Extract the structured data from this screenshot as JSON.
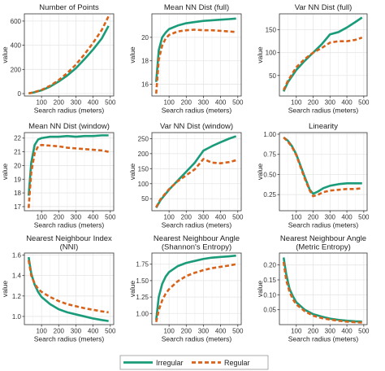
{
  "colors": {
    "irregular": "#1a9c7a",
    "regular": "#d9621a",
    "panel_bg": "#ffffff",
    "grid": "#e6e6e6",
    "frame": "#333333"
  },
  "legend": {
    "items": [
      {
        "label": "Irregular",
        "key": "irregular",
        "dash": false
      },
      {
        "label": "Regular",
        "key": "regular",
        "dash": true
      }
    ]
  },
  "chart_data": [
    {
      "type": "line",
      "title": [
        "Number of Points"
      ],
      "xlabel": "Search radius (meters)",
      "ylabel": "value",
      "xlim": [
        0,
        520
      ],
      "ylim": [
        -20,
        660
      ],
      "xticks": [
        100,
        200,
        300,
        400,
        500
      ],
      "yticks": [
        0,
        200,
        400,
        600
      ],
      "grid": true,
      "x": [
        25,
        50,
        100,
        150,
        200,
        250,
        300,
        350,
        400,
        450,
        490
      ],
      "series": [
        {
          "name": "Irregular",
          "values": [
            2,
            8,
            27,
            58,
            100,
            150,
            210,
            285,
            365,
            455,
            560
          ]
        },
        {
          "name": "Regular",
          "values": [
            2,
            9,
            30,
            65,
            112,
            170,
            240,
            325,
            420,
            525,
            640
          ]
        }
      ]
    },
    {
      "type": "line",
      "title": [
        "Mean NN Dist (full)"
      ],
      "xlabel": "Search radius (meters)",
      "ylabel": "value",
      "xlim": [
        0,
        520
      ],
      "ylim": [
        15,
        22
      ],
      "xticks": [
        100,
        200,
        300,
        400,
        500
      ],
      "yticks": [
        16,
        18,
        20
      ],
      "grid": true,
      "x": [
        25,
        40,
        60,
        80,
        100,
        150,
        200,
        250,
        300,
        350,
        400,
        450,
        490
      ],
      "series": [
        {
          "name": "Irregular",
          "values": [
            16.2,
            18.9,
            20.0,
            20.4,
            20.7,
            21.0,
            21.2,
            21.3,
            21.4,
            21.45,
            21.5,
            21.55,
            21.6
          ]
        },
        {
          "name": "Regular",
          "values": [
            15.2,
            18.1,
            19.3,
            19.9,
            20.2,
            20.5,
            20.6,
            20.65,
            20.6,
            20.6,
            20.55,
            20.5,
            20.45
          ]
        }
      ]
    },
    {
      "type": "line",
      "title": [
        "Var NN Dist (full)"
      ],
      "xlabel": "Search radius (meters)",
      "ylabel": "value",
      "xlim": [
        0,
        520
      ],
      "ylim": [
        5,
        185
      ],
      "xticks": [
        100,
        200,
        300,
        400,
        500
      ],
      "yticks": [
        50,
        100,
        150
      ],
      "grid": true,
      "x": [
        25,
        50,
        100,
        150,
        200,
        250,
        300,
        350,
        400,
        450,
        490
      ],
      "series": [
        {
          "name": "Irregular",
          "values": [
            15,
            35,
            62,
            82,
            100,
            118,
            140,
            145,
            155,
            167,
            177
          ]
        },
        {
          "name": "Regular",
          "values": [
            18,
            38,
            68,
            86,
            100,
            110,
            122,
            125,
            125,
            128,
            133
          ]
        }
      ]
    },
    {
      "type": "line",
      "title": [
        "Mean NN Dist (window)"
      ],
      "xlabel": "Search radius (meters)",
      "ylabel": "value",
      "xlim": [
        0,
        520
      ],
      "ylim": [
        16.7,
        22.4
      ],
      "xticks": [
        100,
        200,
        300,
        400,
        500
      ],
      "yticks": [
        17,
        18,
        19,
        20,
        21,
        22
      ],
      "grid": true,
      "x": [
        25,
        40,
        60,
        80,
        100,
        150,
        200,
        250,
        300,
        350,
        400,
        450,
        490
      ],
      "series": [
        {
          "name": "Irregular",
          "values": [
            17.8,
            20.2,
            21.5,
            21.9,
            22.0,
            22.1,
            22.1,
            22.15,
            22.1,
            22.15,
            22.15,
            22.2,
            22.2
          ]
        },
        {
          "name": "Regular",
          "values": [
            16.9,
            19.5,
            20.9,
            21.4,
            21.5,
            21.45,
            21.4,
            21.3,
            21.25,
            21.2,
            21.15,
            21.1,
            21.0
          ]
        }
      ]
    },
    {
      "type": "line",
      "title": [
        "Var NN Dist (window)"
      ],
      "xlabel": "Search radius (meters)",
      "ylabel": "value",
      "xlim": [
        0,
        520
      ],
      "ylim": [
        10,
        270
      ],
      "xticks": [
        100,
        200,
        300,
        400,
        500
      ],
      "yticks": [
        50,
        100,
        150,
        200,
        250
      ],
      "grid": true,
      "x": [
        25,
        50,
        100,
        150,
        200,
        250,
        300,
        350,
        400,
        450,
        490
      ],
      "series": [
        {
          "name": "Irregular",
          "values": [
            20,
            45,
            80,
            110,
            140,
            170,
            210,
            225,
            238,
            250,
            258
          ]
        },
        {
          "name": "Regular",
          "values": [
            22,
            48,
            82,
            108,
            128,
            148,
            182,
            170,
            168,
            172,
            178
          ]
        }
      ]
    },
    {
      "type": "line",
      "title": [
        "Linearity"
      ],
      "xlabel": "Search radius (meters)",
      "ylabel": "value",
      "xlim": [
        0,
        520
      ],
      "ylim": [
        0.05,
        1.02
      ],
      "xticks": [
        100,
        200,
        300,
        400,
        500
      ],
      "yticks": [
        0.25,
        0.5,
        0.75,
        1.0
      ],
      "yticklabels": [
        "0.25",
        "0.50",
        "0.75",
        "1.00"
      ],
      "grid": true,
      "x": [
        25,
        50,
        75,
        100,
        150,
        180,
        200,
        230,
        260,
        300,
        350,
        400,
        450,
        490
      ],
      "series": [
        {
          "name": "Irregular",
          "values": [
            0.96,
            0.92,
            0.85,
            0.75,
            0.47,
            0.31,
            0.26,
            0.29,
            0.33,
            0.36,
            0.38,
            0.39,
            0.39,
            0.39
          ]
        },
        {
          "name": "Regular",
          "values": [
            0.96,
            0.91,
            0.84,
            0.74,
            0.45,
            0.3,
            0.23,
            0.25,
            0.28,
            0.3,
            0.31,
            0.32,
            0.32,
            0.33
          ]
        }
      ]
    },
    {
      "type": "line",
      "title": [
        "Nearest Neighbour Index",
        "(NNI)"
      ],
      "xlabel": "Search radius (meters)",
      "ylabel": "value",
      "xlim": [
        0,
        520
      ],
      "ylim": [
        0.92,
        1.62
      ],
      "xticks": [
        100,
        200,
        300,
        400,
        500
      ],
      "yticks": [
        1.0,
        1.2,
        1.4,
        1.6
      ],
      "yticklabels": [
        "1.0",
        "1.2",
        "1.4",
        "1.6"
      ],
      "grid": true,
      "x": [
        25,
        40,
        60,
        80,
        100,
        150,
        200,
        250,
        300,
        350,
        400,
        450,
        490
      ],
      "series": [
        {
          "name": "Irregular",
          "values": [
            1.58,
            1.42,
            1.31,
            1.24,
            1.19,
            1.12,
            1.07,
            1.04,
            1.02,
            1.0,
            0.98,
            0.965,
            0.955
          ]
        },
        {
          "name": "Regular",
          "values": [
            1.55,
            1.4,
            1.32,
            1.27,
            1.24,
            1.19,
            1.15,
            1.12,
            1.1,
            1.08,
            1.065,
            1.05,
            1.04
          ]
        }
      ]
    },
    {
      "type": "line",
      "title": [
        "Nearest Neighbour Angle",
        "(Shannon's Entropy)"
      ],
      "xlabel": "Search radius (meters)",
      "ylabel": "value",
      "xlim": [
        0,
        520
      ],
      "ylim": [
        0.83,
        1.92
      ],
      "xticks": [
        100,
        200,
        300,
        400,
        500
      ],
      "yticks": [
        1.0,
        1.25,
        1.5,
        1.75
      ],
      "yticklabels": [
        "1.00",
        "1.25",
        "1.50",
        "1.75"
      ],
      "grid": true,
      "x": [
        25,
        40,
        60,
        80,
        100,
        150,
        200,
        250,
        300,
        350,
        400,
        450,
        490
      ],
      "series": [
        {
          "name": "Irregular",
          "values": [
            0.9,
            1.25,
            1.45,
            1.56,
            1.63,
            1.72,
            1.77,
            1.8,
            1.83,
            1.85,
            1.86,
            1.87,
            1.88
          ]
        },
        {
          "name": "Regular",
          "values": [
            0.87,
            1.05,
            1.2,
            1.3,
            1.37,
            1.49,
            1.57,
            1.62,
            1.66,
            1.69,
            1.71,
            1.73,
            1.75
          ]
        }
      ]
    },
    {
      "type": "line",
      "title": [
        "Nearest Neighbour Angle",
        "(Metric Entropy)"
      ],
      "xlabel": "Search radius (meters)",
      "ylabel": "value",
      "xlim": [
        0,
        520
      ],
      "ylim": [
        0.0,
        0.24
      ],
      "xticks": [
        100,
        200,
        300,
        400,
        500
      ],
      "yticks": [
        0.05,
        0.1,
        0.15,
        0.2
      ],
      "yticklabels": [
        "0.05",
        "0.10",
        "0.15",
        "0.20"
      ],
      "grid": true,
      "x": [
        25,
        40,
        60,
        80,
        100,
        150,
        200,
        250,
        300,
        350,
        400,
        450,
        490
      ],
      "series": [
        {
          "name": "Irregular",
          "values": [
            0.225,
            0.17,
            0.12,
            0.095,
            0.075,
            0.05,
            0.035,
            0.027,
            0.02,
            0.016,
            0.013,
            0.011,
            0.01
          ]
        },
        {
          "name": "Regular",
          "values": [
            0.21,
            0.15,
            0.11,
            0.085,
            0.068,
            0.045,
            0.03,
            0.022,
            0.017,
            0.013,
            0.01,
            0.008,
            0.007
          ]
        }
      ]
    }
  ]
}
